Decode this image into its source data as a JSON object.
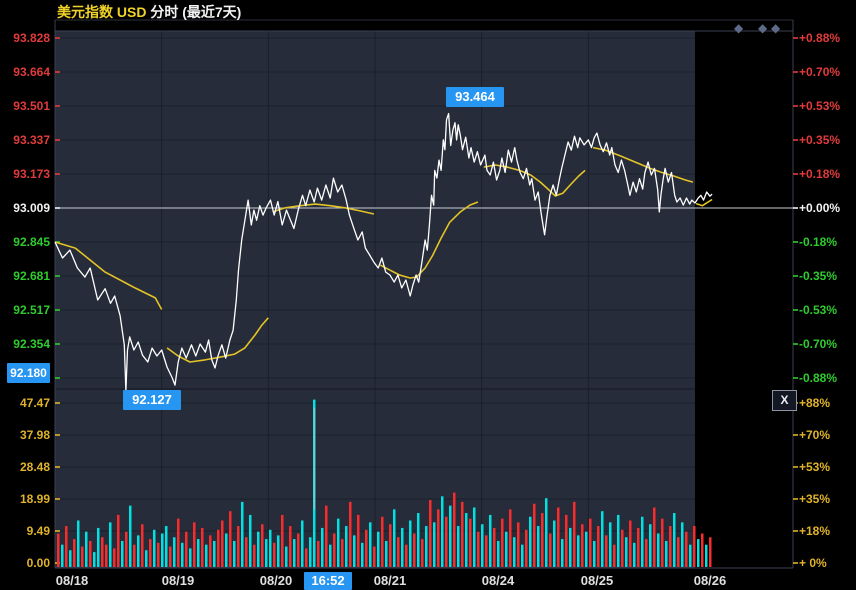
{
  "header": {
    "title_left": "美元指数 USD",
    "title_right": " 分时 (最近7天)"
  },
  "colors": {
    "red": "#e13b3b",
    "green": "#2ecc2e",
    "white": "#f2f2f2",
    "yellow_title": "#f0d327",
    "yellow_vol": "#e0b32a",
    "badge_blue": "#2795f2",
    "price_line": "#ffffff",
    "ma_line": "#e3c325",
    "bar_red": "#fa2b2b",
    "bar_cyan": "#00e2e2",
    "diamond": "#5c6a88",
    "plot_bg": "#272c3a",
    "grid": "#1a1f2a",
    "border": "#3a4150",
    "zero_line": "#c8cdd4",
    "date_text": "#e0e0e0"
  },
  "badges": {
    "high": "93.464",
    "low": "92.127",
    "axis_low": "92.180",
    "time": "16:52"
  },
  "close_button_label": "X",
  "diamond_glyph": "◆",
  "left_axis_labels": [
    "93.828",
    "93.664",
    "93.501",
    "93.337",
    "93.173",
    "93.009",
    "92.845",
    "92.681",
    "92.517",
    "92.354",
    "92.190"
  ],
  "right_axis_labels": [
    "+0.88%",
    "+0.70%",
    "+0.53%",
    "+0.35%",
    "+0.18%",
    "+0.00%",
    "-0.18%",
    "-0.35%",
    "-0.53%",
    "-0.70%",
    "-0.88%"
  ],
  "vol_left_labels": [
    "47.47",
    "37.98",
    "28.48",
    "18.99",
    "9.49",
    "0.00"
  ],
  "vol_right_labels": [
    "+88%",
    "+70%",
    "+53%",
    "+35%",
    "+18%",
    "+ 0%"
  ],
  "date_labels": [
    "08/18",
    "08/19",
    "08/20",
    "08/21",
    "08/24",
    "08/25",
    "08/26"
  ],
  "chart_data": {
    "type": "line",
    "title": "美元指数 USD 分时 (最近7天)",
    "price_axis_range": [
      92.19,
      93.828
    ],
    "pct_axis_range": [
      "-0.88%",
      "+0.88%"
    ],
    "prev_close": 93.009,
    "high": 93.464,
    "low": 92.127,
    "vol_axis_range": [
      0.0,
      47.47
    ],
    "vol_pct_range": [
      "+0%",
      "+88%"
    ],
    "days": [
      "08/18",
      "08/19",
      "08/20",
      "08/21",
      "08/24",
      "08/25",
      "08/26"
    ],
    "price_points": [
      [
        0.0,
        92.845
      ],
      [
        0.07,
        92.768
      ],
      [
        0.14,
        92.806
      ],
      [
        0.21,
        92.72
      ],
      [
        0.28,
        92.676
      ],
      [
        0.33,
        92.72
      ],
      [
        0.4,
        92.566
      ],
      [
        0.47,
        92.62
      ],
      [
        0.52,
        92.55
      ],
      [
        0.56,
        92.585
      ],
      [
        0.61,
        92.49
      ],
      [
        0.65,
        92.35
      ],
      [
        0.665,
        92.127
      ],
      [
        0.68,
        92.325
      ],
      [
        0.7,
        92.388
      ],
      [
        0.74,
        92.325
      ],
      [
        0.78,
        92.363
      ],
      [
        0.82,
        92.3
      ],
      [
        0.87,
        92.267
      ],
      [
        0.91,
        92.334
      ],
      [
        0.955,
        92.296
      ],
      [
        1.0,
        92.325
      ],
      [
        1.05,
        92.243
      ],
      [
        1.1,
        92.19
      ],
      [
        1.125,
        92.156
      ],
      [
        1.155,
        92.267
      ],
      [
        1.19,
        92.334
      ],
      [
        1.23,
        92.286
      ],
      [
        1.28,
        92.35
      ],
      [
        1.32,
        92.296
      ],
      [
        1.36,
        92.354
      ],
      [
        1.41,
        92.315
      ],
      [
        1.44,
        92.373
      ],
      [
        1.47,
        92.277
      ],
      [
        1.5,
        92.238
      ],
      [
        1.53,
        92.3
      ],
      [
        1.565,
        92.35
      ],
      [
        1.6,
        92.286
      ],
      [
        1.64,
        92.373
      ],
      [
        1.67,
        92.42
      ],
      [
        1.7,
        92.566
      ],
      [
        1.72,
        92.71
      ],
      [
        1.75,
        92.855
      ],
      [
        1.78,
        92.95
      ],
      [
        1.81,
        93.047
      ],
      [
        1.84,
        92.927
      ],
      [
        1.865,
        92.999
      ],
      [
        1.89,
        92.95
      ],
      [
        1.92,
        93.02
      ],
      [
        1.95,
        92.975
      ],
      [
        1.98,
        93.01
      ],
      [
        2.02,
        93.047
      ],
      [
        2.055,
        92.975
      ],
      [
        2.09,
        93.04
      ],
      [
        2.13,
        92.927
      ],
      [
        2.17,
        92.999
      ],
      [
        2.2,
        92.96
      ],
      [
        2.24,
        92.91
      ],
      [
        2.28,
        92.999
      ],
      [
        2.32,
        93.07
      ],
      [
        2.35,
        93.02
      ],
      [
        2.39,
        93.095
      ],
      [
        2.43,
        93.038
      ],
      [
        2.46,
        93.105
      ],
      [
        2.5,
        93.047
      ],
      [
        2.54,
        93.12
      ],
      [
        2.58,
        93.057
      ],
      [
        2.61,
        93.153
      ],
      [
        2.65,
        93.086
      ],
      [
        2.69,
        93.12
      ],
      [
        2.73,
        93.047
      ],
      [
        2.76,
        92.975
      ],
      [
        2.8,
        92.913
      ],
      [
        2.84,
        92.855
      ],
      [
        2.88,
        92.894
      ],
      [
        2.91,
        92.816
      ],
      [
        2.95,
        92.782
      ],
      [
        2.99,
        92.748
      ],
      [
        3.03,
        92.72
      ],
      [
        3.065,
        92.768
      ],
      [
        3.1,
        92.7
      ],
      [
        3.14,
        92.686
      ],
      [
        3.18,
        92.652
      ],
      [
        3.215,
        92.686
      ],
      [
        3.25,
        92.624
      ],
      [
        3.29,
        92.662
      ],
      [
        3.33,
        92.585
      ],
      [
        3.355,
        92.638
      ],
      [
        3.385,
        92.686
      ],
      [
        3.41,
        92.652
      ],
      [
        3.44,
        92.748
      ],
      [
        3.47,
        92.855
      ],
      [
        3.49,
        92.806
      ],
      [
        3.51,
        92.927
      ],
      [
        3.53,
        93.07
      ],
      [
        3.55,
        93.023
      ],
      [
        3.56,
        93.19
      ],
      [
        3.58,
        93.153
      ],
      [
        3.6,
        93.24
      ],
      [
        3.62,
        93.19
      ],
      [
        3.64,
        93.337
      ],
      [
        3.655,
        93.29
      ],
      [
        3.67,
        93.434
      ],
      [
        3.69,
        93.464
      ],
      [
        3.71,
        93.31
      ],
      [
        3.73,
        93.385
      ],
      [
        3.75,
        93.42
      ],
      [
        3.765,
        93.337
      ],
      [
        3.78,
        93.41
      ],
      [
        3.8,
        93.36
      ],
      [
        3.82,
        93.29
      ],
      [
        3.85,
        93.35
      ],
      [
        3.88,
        93.25
      ],
      [
        3.9,
        93.3
      ],
      [
        3.93,
        93.23
      ],
      [
        3.96,
        93.28
      ],
      [
        3.99,
        93.216
      ],
      [
        4.03,
        93.264
      ],
      [
        4.05,
        93.19
      ],
      [
        4.08,
        93.168
      ],
      [
        4.11,
        93.23
      ],
      [
        4.14,
        93.144
      ],
      [
        4.17,
        93.19
      ],
      [
        4.19,
        93.25
      ],
      [
        4.22,
        93.18
      ],
      [
        4.25,
        93.288
      ],
      [
        4.28,
        93.23
      ],
      [
        4.31,
        93.3
      ],
      [
        4.33,
        93.24
      ],
      [
        4.36,
        93.18
      ],
      [
        4.39,
        93.15
      ],
      [
        4.42,
        93.2
      ],
      [
        4.45,
        93.12
      ],
      [
        4.47,
        93.15
      ],
      [
        4.5,
        93.047
      ],
      [
        4.53,
        93.086
      ],
      [
        4.56,
        92.975
      ],
      [
        4.59,
        92.88
      ],
      [
        4.61,
        92.96
      ],
      [
        4.64,
        93.07
      ],
      [
        4.67,
        93.12
      ],
      [
        4.7,
        93.07
      ],
      [
        4.73,
        93.15
      ],
      [
        4.75,
        93.2
      ],
      [
        4.78,
        93.264
      ],
      [
        4.81,
        93.327
      ],
      [
        4.84,
        93.288
      ],
      [
        4.87,
        93.355
      ],
      [
        4.9,
        93.3
      ],
      [
        4.92,
        93.347
      ],
      [
        4.96,
        93.313
      ],
      [
        5.0,
        93.337
      ],
      [
        5.03,
        93.3
      ],
      [
        5.055,
        93.347
      ],
      [
        5.08,
        93.37
      ],
      [
        5.11,
        93.313
      ],
      [
        5.14,
        93.28
      ],
      [
        5.17,
        93.323
      ],
      [
        5.2,
        93.264
      ],
      [
        5.22,
        93.3
      ],
      [
        5.25,
        93.216
      ],
      [
        5.28,
        93.18
      ],
      [
        5.31,
        93.24
      ],
      [
        5.34,
        93.19
      ],
      [
        5.37,
        93.12
      ],
      [
        5.39,
        93.07
      ],
      [
        5.42,
        93.134
      ],
      [
        5.45,
        93.086
      ],
      [
        5.48,
        93.15
      ],
      [
        5.51,
        93.1
      ],
      [
        5.53,
        93.18
      ],
      [
        5.56,
        93.23
      ],
      [
        5.59,
        93.168
      ],
      [
        5.62,
        93.2
      ],
      [
        5.65,
        93.096
      ],
      [
        5.665,
        92.99
      ],
      [
        5.68,
        93.07
      ],
      [
        5.7,
        93.144
      ],
      [
        5.72,
        93.2
      ],
      [
        5.75,
        93.134
      ],
      [
        5.78,
        93.18
      ],
      [
        5.81,
        93.07
      ],
      [
        5.83,
        93.038
      ],
      [
        5.86,
        93.057
      ],
      [
        5.89,
        93.023
      ],
      [
        5.92,
        93.057
      ],
      [
        5.95,
        93.028
      ],
      [
        5.97,
        93.047
      ],
      [
        6.0,
        93.033
      ],
      [
        6.03,
        93.057
      ],
      [
        6.055,
        93.07
      ],
      [
        6.08,
        93.047
      ],
      [
        6.11,
        93.086
      ],
      [
        6.14,
        93.066
      ],
      [
        6.16,
        93.076
      ]
    ],
    "ma_segments": [
      [
        [
          0.0,
          92.845
        ],
        [
          0.19,
          92.816
        ],
        [
          0.47,
          92.7
        ],
        [
          0.75,
          92.624
        ],
        [
          0.94,
          92.576
        ],
        [
          1.0,
          92.52
        ]
      ],
      [
        [
          1.05,
          92.335
        ],
        [
          1.155,
          92.296
        ],
        [
          1.265,
          92.267
        ],
        [
          1.405,
          92.277
        ],
        [
          1.545,
          92.29
        ],
        [
          1.685,
          92.305
        ],
        [
          1.78,
          92.335
        ],
        [
          1.875,
          92.397
        ],
        [
          1.94,
          92.445
        ],
        [
          2.0,
          92.48
        ]
      ],
      [
        [
          2.04,
          92.99
        ],
        [
          2.16,
          93.01
        ],
        [
          2.3,
          93.02
        ],
        [
          2.44,
          93.028
        ],
        [
          2.58,
          93.02
        ],
        [
          2.72,
          93.01
        ],
        [
          2.86,
          92.995
        ],
        [
          2.99,
          92.98
        ]
      ],
      [
        [
          3.05,
          92.734
        ],
        [
          3.14,
          92.71
        ],
        [
          3.23,
          92.686
        ],
        [
          3.33,
          92.672
        ],
        [
          3.39,
          92.676
        ],
        [
          3.47,
          92.72
        ],
        [
          3.54,
          92.78
        ],
        [
          3.62,
          92.864
        ],
        [
          3.7,
          92.94
        ],
        [
          3.8,
          92.99
        ],
        [
          3.89,
          93.023
        ],
        [
          3.965,
          93.038
        ]
      ],
      [
        [
          4.02,
          93.206
        ],
        [
          4.13,
          93.216
        ],
        [
          4.24,
          93.206
        ],
        [
          4.355,
          93.19
        ],
        [
          4.46,
          93.168
        ],
        [
          4.55,
          93.134
        ],
        [
          4.63,
          93.096
        ],
        [
          4.69,
          93.067
        ],
        [
          4.76,
          93.08
        ],
        [
          4.83,
          93.12
        ],
        [
          4.91,
          93.163
        ],
        [
          4.97,
          93.19
        ]
      ],
      [
        [
          5.045,
          93.3
        ],
        [
          5.16,
          93.288
        ],
        [
          5.3,
          93.26
        ],
        [
          5.44,
          93.23
        ],
        [
          5.58,
          93.2
        ],
        [
          5.69,
          93.18
        ],
        [
          5.8,
          93.163
        ],
        [
          5.91,
          93.144
        ],
        [
          5.98,
          93.134
        ]
      ],
      [
        [
          6.01,
          93.03
        ],
        [
          6.07,
          93.02
        ],
        [
          6.1,
          93.03
        ],
        [
          6.16,
          93.05
        ]
      ]
    ],
    "volume_bars": [
      "18r",
      "12c",
      "22r",
      "9c",
      "15r",
      "25c",
      "11r",
      "19c",
      "14r",
      "8c",
      "21c",
      "16r",
      "12r",
      "24c",
      "10r",
      "28r",
      "14c",
      "19r",
      "33c",
      "12r",
      "17c",
      "23r",
      "9c",
      "15r",
      "20c",
      "13r",
      "18c",
      "22c",
      "11r",
      "16c",
      "26r",
      "13c",
      "19r",
      "10c",
      "24r",
      "15c",
      "21r",
      "12c",
      "17r",
      "14c",
      "20r",
      "25r",
      "18c",
      "30r",
      "14c",
      "22r",
      "35c",
      "16r",
      "28c",
      "12r",
      "19c",
      "23r",
      "15c",
      "20c",
      "13r",
      "17c",
      "28r",
      "11c",
      "22r",
      "15c",
      "18r",
      "25c",
      "10r",
      "16c",
      "90c",
      "14r",
      "21c",
      "33r",
      "12c",
      "18r",
      "26c",
      "15r",
      "22c",
      "35r",
      "17c",
      "28r",
      "13c",
      "20r",
      "24c",
      "11r",
      "19c",
      "27r",
      "14c",
      "23r",
      "31c",
      "16r",
      "21c",
      "12r",
      "25c",
      "18r",
      "29c",
      "15r",
      "22c",
      "36r",
      "24c",
      "31r",
      "38c",
      "27r",
      "33c",
      "40r",
      "22c",
      "35r",
      "29c",
      "26r",
      "32c",
      "19r",
      "23c",
      "17r",
      "28c",
      "21r",
      "14c",
      "26r",
      "19c",
      "31r",
      "16c",
      "24r",
      "12c",
      "20r",
      "27c",
      "34r",
      "22c",
      "29r",
      "37c",
      "18r",
      "25c",
      "32r",
      "15c",
      "28r",
      "21c",
      "35r",
      "17c",
      "23r",
      "19c",
      "26r",
      "14c",
      "22r",
      "30c",
      "17r",
      "24c",
      "12r",
      "28c",
      "20r",
      "16c",
      "25r",
      "13c",
      "21r",
      "27c",
      "15r",
      "23c",
      "32r",
      "18c",
      "26r",
      "14c",
      "22r",
      "29c",
      "16r",
      "24c",
      "19r",
      "12c",
      "22r",
      "15c",
      "18r",
      "12c",
      "16r"
    ]
  }
}
